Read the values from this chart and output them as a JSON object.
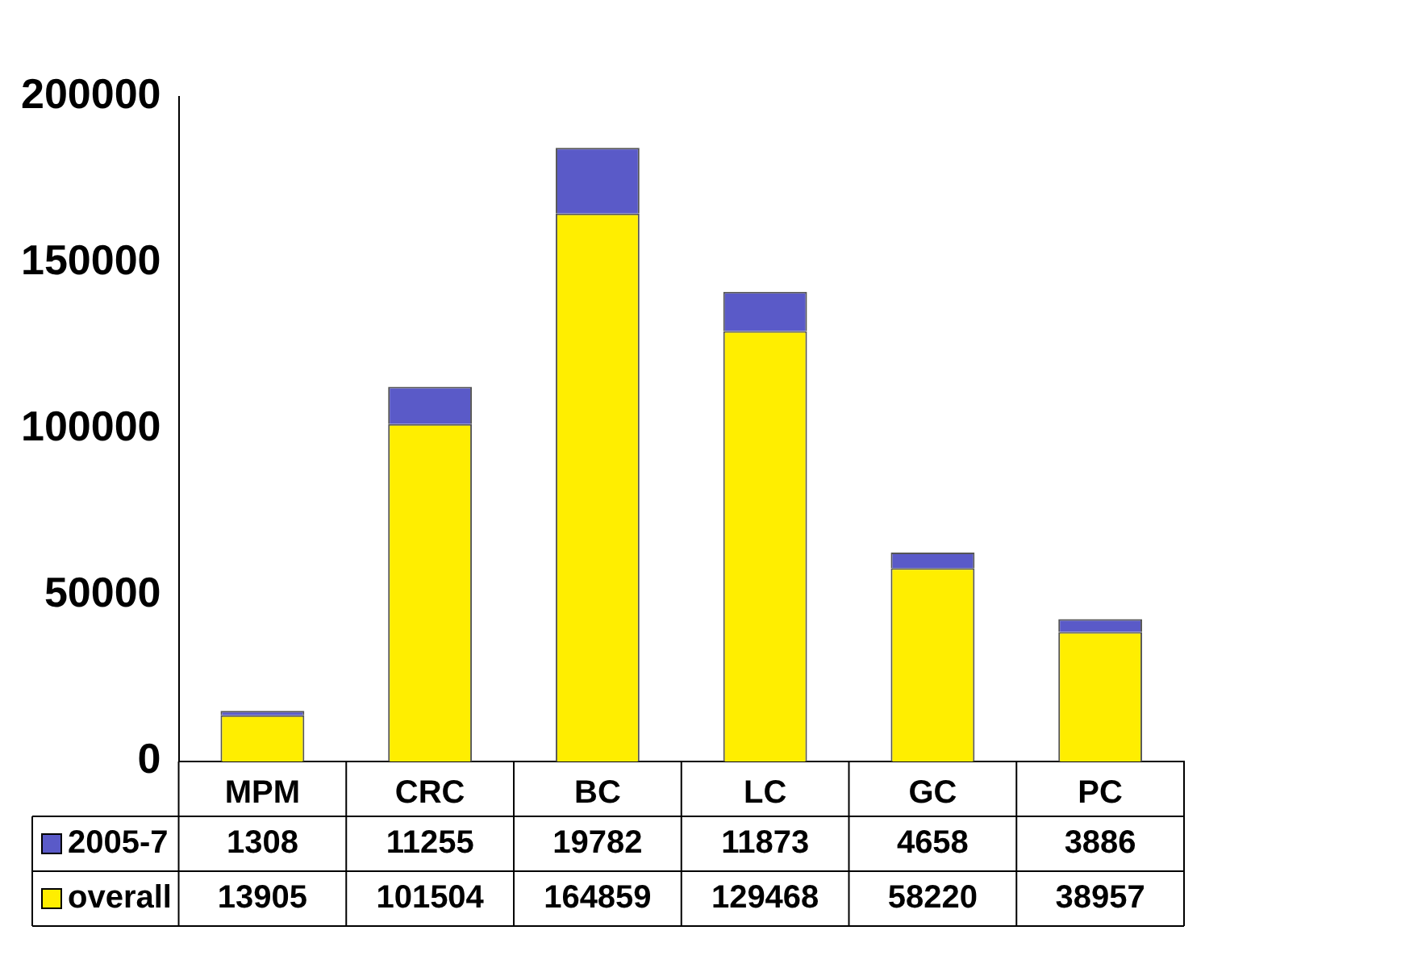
{
  "chart_data": {
    "type": "bar",
    "stacked": true,
    "categories": [
      "MPM",
      "CRC",
      "BC",
      "LC",
      "GC",
      "PC"
    ],
    "series": [
      {
        "name": "overall",
        "color": "#ffee00",
        "values": [
          13905,
          101504,
          164859,
          129468,
          58220,
          38957
        ]
      },
      {
        "name": "2005-7",
        "color": "#5a5ac8",
        "values": [
          1308,
          11255,
          19782,
          11873,
          4658,
          3886
        ]
      }
    ],
    "ylim": [
      0,
      200000
    ],
    "yticks": [
      0,
      50000,
      100000,
      150000,
      200000
    ],
    "grid": false,
    "legend": "bottom",
    "data_labels": true
  }
}
